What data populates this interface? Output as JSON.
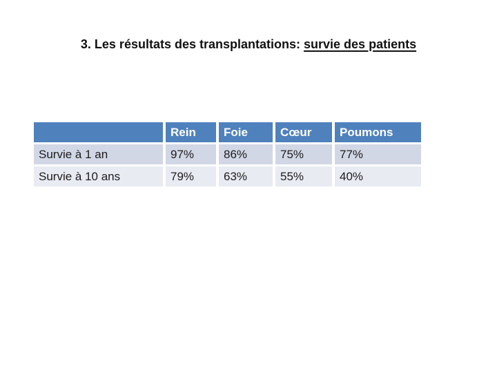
{
  "title": {
    "prefix": "3. Les résultats des transplantations: ",
    "underlined": "survie des patients"
  },
  "table": {
    "columns": [
      "",
      "Rein",
      "Foie",
      "Cœur",
      "Poumons"
    ],
    "rows": [
      {
        "label": "Survie à 1 an",
        "values": [
          "97%",
          "86%",
          "75%",
          "77%"
        ]
      },
      {
        "label": "Survie à 10 ans",
        "values": [
          "79%",
          "63%",
          "55%",
          "40%"
        ]
      }
    ]
  },
  "colors": {
    "header_bg": "#4f81bd",
    "header_text": "#ffffff",
    "row_band_1_bg": "#d1d7e5",
    "row_band_2_bg": "#e9ebf3",
    "body_text": "#1c1c1c",
    "title_text": "#111111"
  }
}
